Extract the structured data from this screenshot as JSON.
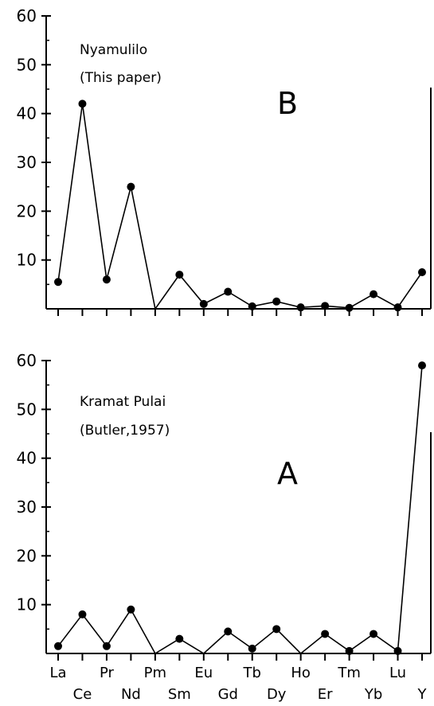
{
  "chart_data": [
    {
      "type": "line",
      "panel": "B",
      "panel_label": "B",
      "annotation_lines": [
        "Nyamulilo",
        "(This paper)"
      ],
      "categories": [
        "La",
        "Ce",
        "Pr",
        "Nd",
        "Pm",
        "Sm",
        "Eu",
        "Gd",
        "Tb",
        "Dy",
        "Ho",
        "Er",
        "Tm",
        "Yb",
        "Lu",
        "Y"
      ],
      "values": [
        5.5,
        42,
        6,
        25,
        0,
        7,
        1,
        3.5,
        0.5,
        1.5,
        0.3,
        0.6,
        0.2,
        3,
        0.3,
        7.5
      ],
      "ylim": [
        0,
        60
      ],
      "yticks": [
        10,
        20,
        30,
        40,
        50,
        60
      ],
      "show_x_labels": false,
      "grid": false
    },
    {
      "type": "line",
      "panel": "A",
      "panel_label": "A",
      "annotation_lines": [
        "Kramat Pulai",
        "(Butler,1957)"
      ],
      "categories": [
        "La",
        "Ce",
        "Pr",
        "Nd",
        "Pm",
        "Sm",
        "Eu",
        "Gd",
        "Tb",
        "Dy",
        "Ho",
        "Er",
        "Tm",
        "Yb",
        "Lu",
        "Y"
      ],
      "values": [
        1.5,
        8,
        1.5,
        9,
        0,
        3,
        0,
        4.5,
        1,
        5,
        0,
        4,
        0.5,
        4,
        0.5,
        59
      ],
      "ylim": [
        0,
        60
      ],
      "yticks": [
        10,
        20,
        30,
        40,
        50,
        60
      ],
      "show_x_labels": true,
      "grid": false
    }
  ]
}
